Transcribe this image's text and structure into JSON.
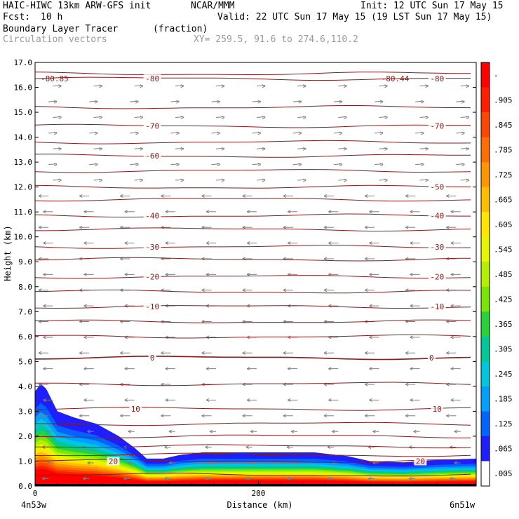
{
  "header": {
    "model_line": "HAIC-HIWC 13km ARW-GFS init",
    "org": "NCAR/MMM",
    "init": "Init: 12 UTC Sun 17 May 15",
    "fcst_label": "Fcst:",
    "fcst_value": "10 h",
    "valid": "Valid: 22 UTC Sun 17 May 15 (19 LST Sun 17 May 15)",
    "field": "Boundary Layer Tracer",
    "field_units": "(fraction)",
    "vectors": "Circulation vectors",
    "xy": "XY= 259.5, 91.6 to 274.6,110.2"
  },
  "colors": {
    "contour": "#8b1a1a",
    "vector": "#7f7f7f",
    "header_gray": "#9a9a9a"
  },
  "chart_data": {
    "type": "heatmap",
    "title": "Boundary Layer Tracer",
    "units": "(fraction)",
    "xlabel": "Distance (km)",
    "ylabel": "Height (km)",
    "xlim": [
      0,
      395
    ],
    "ylim": [
      0,
      17
    ],
    "x_ticks": [
      0,
      200
    ],
    "x_tick_labels": [
      "0",
      "200"
    ],
    "y_ticks": [
      0,
      1,
      2,
      3,
      4,
      5,
      6,
      7,
      8,
      9,
      10,
      11,
      12,
      13,
      14,
      15,
      16,
      17
    ],
    "y_tick_labels": [
      "0.0",
      "1.0",
      "2.0",
      "3.0",
      "4.0",
      "5.0",
      "6.0",
      "7.0",
      "8.0",
      "9.0",
      "10.0",
      "11.0",
      "12.0",
      "13.0",
      "14.0",
      "15.0",
      "16.0",
      "17.0"
    ],
    "x_endpoint_labels": [
      "4n53w",
      "6n51w"
    ],
    "colorbar": {
      "labels": [
        "-",
        ".905",
        ".845",
        ".785",
        ".725",
        ".665",
        ".605",
        ".545",
        ".485",
        ".425",
        ".365",
        ".305",
        ".245",
        ".185",
        ".125",
        ".065",
        ".005"
      ],
      "colors": [
        "#ff0000",
        "#ff1e00",
        "#ff4600",
        "#ff6e00",
        "#ff9600",
        "#ffbe00",
        "#ffe600",
        "#e6f500",
        "#b4f000",
        "#78e600",
        "#28d23c",
        "#00c896",
        "#00c8dc",
        "#00a0ff",
        "#0064ff",
        "#1e1eff",
        "#ffffff"
      ]
    },
    "tracer_top_km": [
      [
        0,
        3.8
      ],
      [
        5,
        4.1
      ],
      [
        10,
        3.9
      ],
      [
        20,
        3.0
      ],
      [
        35,
        2.75
      ],
      [
        55,
        2.5
      ],
      [
        75,
        2.0
      ],
      [
        90,
        1.5
      ],
      [
        100,
        1.1
      ],
      [
        115,
        1.1
      ],
      [
        130,
        1.25
      ],
      [
        150,
        1.35
      ],
      [
        200,
        1.35
      ],
      [
        250,
        1.35
      ],
      [
        280,
        1.2
      ],
      [
        300,
        1.0
      ],
      [
        330,
        0.95
      ],
      [
        360,
        1.05
      ],
      [
        395,
        1.1
      ]
    ],
    "isotherms_c": [
      {
        "label": "-80",
        "km": 16.35,
        "positions_km": [
          105,
          360
        ]
      },
      {
        "label": "-70",
        "km": 14.45,
        "positions_km": [
          105,
          360
        ]
      },
      {
        "label": "-60",
        "km": 13.25,
        "positions_km": [
          105
        ]
      },
      {
        "label": "-50",
        "km": 12.0,
        "positions_km": [
          360
        ]
      },
      {
        "label": "-40",
        "km": 10.85,
        "positions_km": [
          105,
          360
        ]
      },
      {
        "label": "-30",
        "km": 9.6,
        "positions_km": [
          105,
          360
        ]
      },
      {
        "label": "-20",
        "km": 8.4,
        "positions_km": [
          105,
          360
        ]
      },
      {
        "label": "-10",
        "km": 7.2,
        "positions_km": [
          105,
          360
        ]
      },
      {
        "label": "0",
        "km": 5.15,
        "positions_km": [
          105,
          355
        ]
      },
      {
        "label": "10",
        "km": 3.1,
        "positions_km": [
          90,
          360
        ]
      },
      {
        "label": "20",
        "km": 1.0,
        "positions_km": [
          70,
          345
        ]
      }
    ],
    "extra_isotherm_km": [
      16.55,
      15.2,
      13.8,
      12.65,
      11.5,
      10.3,
      9.1,
      7.8,
      6.6,
      6.0,
      4.1,
      2.5,
      2.0,
      1.6,
      1.25,
      0.45
    ],
    "extrema_labels": [
      {
        "label": "-80.85",
        "x_km": 5,
        "km": 16.35
      },
      {
        "label": "-80.44",
        "x_km": 310,
        "km": 16.35
      }
    ],
    "vector_wind": "easterly (vectors pointing left below ~12 km, right above ~12 km)"
  }
}
